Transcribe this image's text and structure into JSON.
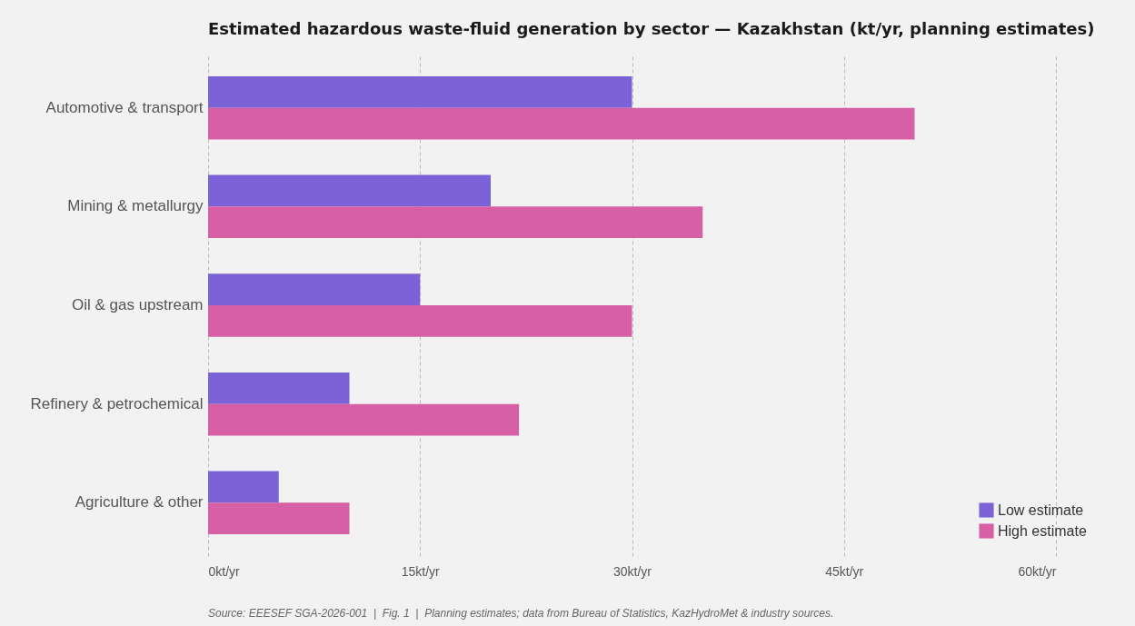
{
  "chart_data": {
    "type": "bar",
    "orientation": "horizontal",
    "title": "Estimated hazardous waste-fluid generation by sector — Kazakhstan (kt/yr, planning estimates)",
    "categories": [
      "Automotive & transport",
      "Mining & metallurgy",
      "Oil & gas upstream",
      "Refinery & petrochemical",
      "Agriculture & other"
    ],
    "series": [
      {
        "name": "Low estimate",
        "color": "#7b62d6",
        "values": [
          30,
          20,
          15,
          10,
          5
        ]
      },
      {
        "name": "High estimate",
        "color": "#d75fa6",
        "values": [
          50,
          35,
          30,
          22,
          10
        ]
      }
    ],
    "xlim": [
      0,
      60
    ],
    "xticks": [
      {
        "value": 0,
        "label": "0kt/yr"
      },
      {
        "value": 15,
        "label": "15kt/yr"
      },
      {
        "value": 30,
        "label": "30kt/yr"
      },
      {
        "value": 45,
        "label": "45kt/yr"
      },
      {
        "value": 60,
        "label": "60kt/yr"
      }
    ],
    "grid": "x",
    "legend": "bottom right",
    "annotations": [
      "Source: EEESEF SGA-2026-001  |  Fig. 1  |  Planning estimates; data from Bureau of Statistics, KazHydroMet & industry sources."
    ]
  }
}
